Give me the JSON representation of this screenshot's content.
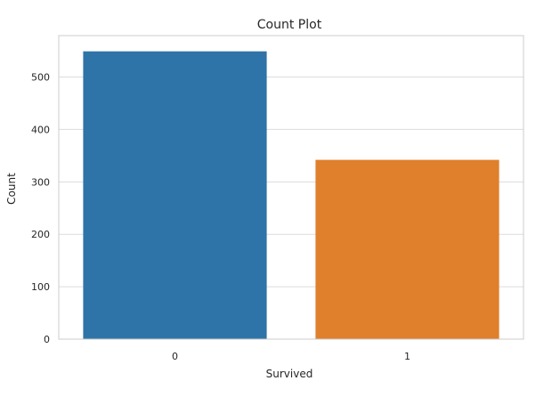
{
  "chart_data": {
    "type": "bar",
    "title": "Count Plot",
    "xlabel": "Survived",
    "ylabel": "Count",
    "categories": [
      "0",
      "1"
    ],
    "values": [
      549,
      342
    ],
    "ylim": [
      0,
      579
    ],
    "yticks": [
      0,
      100,
      200,
      300,
      400,
      500
    ],
    "ytick_labels": [
      "0",
      "100",
      "200",
      "300",
      "400",
      "500"
    ],
    "grid": "horizontal",
    "colors": [
      "#2f74a8",
      "#e07f2c"
    ],
    "background": "#ffffff",
    "gridline_color": "#dcdcdc",
    "spine_color": "#cccccc"
  }
}
